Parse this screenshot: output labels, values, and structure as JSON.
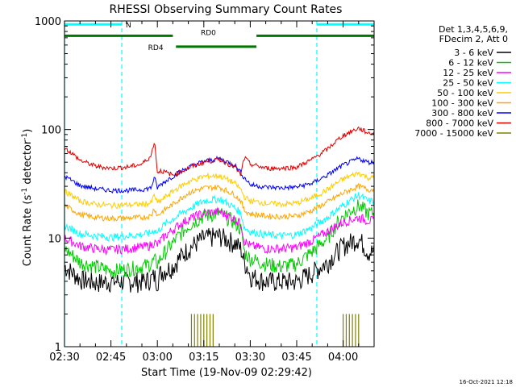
{
  "chart_data": {
    "type": "line",
    "title": "RHESSI Observing Summary Count Rates",
    "xlabel": "Start Time (19-Nov-09 02:29:42)",
    "ylabel": "Count Rate (s⁻¹ detector⁻¹)",
    "ylabel_main": "Count Rate (s",
    "ylabel_sup1": "-1",
    "ylabel_mid": " detector",
    "ylabel_sup2": "-1",
    "ylabel_end": ")",
    "yscale": "log",
    "ylim": [
      1,
      1000
    ],
    "xlim_minutes": [
      0,
      100
    ],
    "x_ticks": [
      {
        "label": "02:30",
        "minute": 0
      },
      {
        "label": "02:45",
        "minute": 15
      },
      {
        "label": "03:00",
        "minute": 30
      },
      {
        "label": "03:15",
        "minute": 45
      },
      {
        "label": "03:30",
        "minute": 60
      },
      {
        "label": "03:45",
        "minute": 75
      },
      {
        "label": "04:00",
        "minute": 90
      }
    ],
    "y_ticks": [
      {
        "label": "1",
        "value": 1
      },
      {
        "label": "10",
        "value": 10
      },
      {
        "label": "100",
        "value": 100
      },
      {
        "label": "1000",
        "value": 1000
      }
    ],
    "legend_header": [
      "Det 1,3,4,5,6,9,",
      "FDecim 2, Att 0"
    ],
    "legend_position": "top-right outside",
    "footer_date": "16-Oct-2021 12:18",
    "time_minutes": [
      0,
      5,
      10,
      15,
      20,
      25,
      28,
      29,
      30,
      31,
      35,
      40,
      45,
      50,
      55,
      57,
      58,
      59,
      60,
      65,
      70,
      75,
      80,
      85,
      90,
      95,
      98
    ],
    "series": [
      {
        "name": "3 - 6 keV",
        "color": "#000000",
        "values": [
          5.5,
          4.2,
          3.9,
          4.0,
          4.0,
          4.0,
          4.2,
          4.5,
          4.0,
          4.8,
          5.5,
          8.0,
          10.0,
          10.5,
          9.0,
          8.0,
          6.0,
          5.5,
          4.5,
          4.0,
          4.0,
          4.0,
          4.8,
          6.0,
          8.5,
          10.0,
          7.5
        ]
      },
      {
        "name": "6 - 12 keV",
        "color": "#00cc00",
        "values": [
          8.0,
          6.0,
          5.5,
          5.0,
          5.2,
          5.5,
          5.8,
          6.3,
          5.8,
          6.5,
          9.0,
          13.0,
          16.0,
          17.0,
          14.0,
          12.0,
          7.5,
          7.0,
          6.5,
          5.8,
          5.5,
          5.8,
          7.5,
          10.0,
          16.0,
          20.0,
          17.0
        ]
      },
      {
        "name": "12 - 25 keV",
        "color": "#ff00ff",
        "values": [
          10.0,
          8.5,
          8.0,
          7.8,
          8.0,
          8.3,
          8.6,
          9.2,
          8.6,
          9.5,
          12.0,
          15.0,
          17.0,
          17.5,
          15.0,
          13.5,
          9.5,
          9.0,
          8.5,
          8.0,
          8.0,
          8.2,
          9.5,
          11.5,
          14.0,
          15.5,
          14.5
        ]
      },
      {
        "name": "25 - 50 keV",
        "color": "#00ffff",
        "values": [
          13.0,
          11.0,
          10.5,
          10.2,
          10.5,
          10.8,
          11.2,
          12.0,
          11.2,
          12.5,
          15.0,
          18.5,
          22.0,
          23.0,
          19.0,
          17.0,
          12.5,
          12.0,
          11.5,
          10.8,
          10.5,
          10.8,
          12.5,
          15.5,
          20.0,
          25.0,
          22.0
        ]
      },
      {
        "name": "50 - 100 keV",
        "color": "#ffcc00",
        "values": [
          27.0,
          22.0,
          20.5,
          20.0,
          20.2,
          20.5,
          21.0,
          25.0,
          21.0,
          22.0,
          27.0,
          33.0,
          37.0,
          37.5,
          32.0,
          28.0,
          24.0,
          23.0,
          22.0,
          21.0,
          20.5,
          21.0,
          23.5,
          28.0,
          35.0,
          40.0,
          36.0
        ]
      },
      {
        "name": "100 - 300 keV",
        "color": "#ffa500",
        "values": [
          20.0,
          16.5,
          15.5,
          15.2,
          15.3,
          15.5,
          16.0,
          19.0,
          16.0,
          17.0,
          20.5,
          26.0,
          29.0,
          29.5,
          25.0,
          22.0,
          18.0,
          17.5,
          16.8,
          16.0,
          15.8,
          16.0,
          18.0,
          21.5,
          26.0,
          30.0,
          28.0
        ]
      },
      {
        "name": "300 - 800 keV",
        "color": "#0000ff",
        "values": [
          37.0,
          30.5,
          28.5,
          27.5,
          27.5,
          28.0,
          29.0,
          36.0,
          29.0,
          31.0,
          37.0,
          45.0,
          51.0,
          54.0,
          47.0,
          40.0,
          36.0,
          34.0,
          31.0,
          29.5,
          29.0,
          29.5,
          32.0,
          38.0,
          47.0,
          54.0,
          50.0
        ]
      },
      {
        "name": "800 - 7000 keV",
        "color": "#dd0000",
        "values": [
          68.0,
          52.0,
          46.0,
          44.0,
          45.0,
          48.0,
          57.0,
          78.0,
          40.0,
          42.0,
          38.0,
          44.0,
          50.0,
          53.0,
          45.0,
          38.0,
          55.0,
          52.0,
          48.0,
          44.0,
          44.0,
          45.0,
          53.0,
          66.0,
          88.0,
          103.0,
          93.0
        ]
      },
      {
        "name": "7000 - 15000 keV",
        "color": "#808000",
        "values": []
      }
    ],
    "high_energy_spikes_minutes": [
      41,
      42,
      43,
      44,
      45,
      46,
      47,
      48,
      90,
      91,
      92,
      93,
      94,
      95
    ],
    "spike_peak_value": 2,
    "ref_lines_minutes": [
      0,
      18.5,
      81.5
    ],
    "ref_line_dashed": [
      false,
      true,
      true
    ],
    "top_bars": {
      "cyan": {
        "label": "N",
        "segments": [
          [
            0,
            18.5
          ],
          [
            81.5,
            100
          ]
        ],
        "level": 930
      },
      "green_upper": {
        "label": "RD0",
        "segments": [
          [
            0,
            35
          ],
          [
            62,
            100
          ]
        ],
        "level": 730
      },
      "green_lower": {
        "label": "RD4",
        "segments": [
          [
            36,
            62
          ]
        ],
        "level": 580
      }
    }
  }
}
